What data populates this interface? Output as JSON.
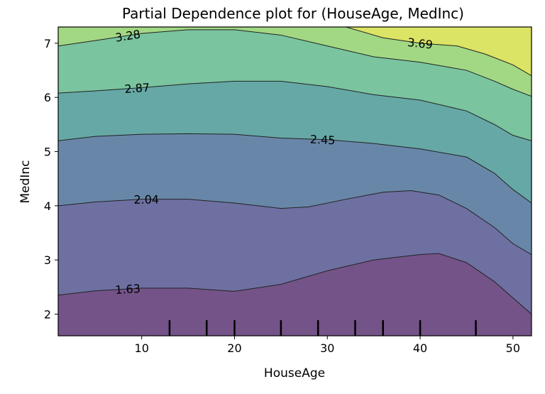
{
  "chart_data": {
    "type": "contour",
    "title": "Partial Dependence plot for (HouseAge, MedInc)",
    "xlabel": "HouseAge",
    "ylabel": "MedInc",
    "xlim": [
      1,
      52
    ],
    "ylim": [
      1.6,
      7.3
    ],
    "x_ticks": [
      10,
      20,
      30,
      40,
      50
    ],
    "y_ticks": [
      2,
      3,
      4,
      5,
      6,
      7
    ],
    "grid": false,
    "levels": [
      1.63,
      2.04,
      2.45,
      2.87,
      3.28,
      3.69
    ],
    "band_colors": [
      "#745388",
      "#6e70a2",
      "#6887a8",
      "#66a8a6",
      "#7ac49f",
      "#a2d884",
      "#dbe464"
    ],
    "contour_lines": [
      {
        "level": 1.63,
        "label": "1.63",
        "points": [
          [
            1,
            2.35
          ],
          [
            5,
            2.43
          ],
          [
            10,
            2.48
          ],
          [
            15,
            2.48
          ],
          [
            20,
            2.42
          ],
          [
            25,
            2.55
          ],
          [
            30,
            2.8
          ],
          [
            35,
            3.0
          ],
          [
            40,
            3.1
          ],
          [
            42,
            3.12
          ],
          [
            45,
            2.95
          ],
          [
            48,
            2.6
          ],
          [
            50,
            2.3
          ],
          [
            52,
            2.0
          ]
        ]
      },
      {
        "level": 2.04,
        "label": "2.04",
        "points": [
          [
            1,
            4.0
          ],
          [
            5,
            4.07
          ],
          [
            10,
            4.12
          ],
          [
            15,
            4.12
          ],
          [
            20,
            4.05
          ],
          [
            25,
            3.95
          ],
          [
            28,
            3.98
          ],
          [
            32,
            4.12
          ],
          [
            36,
            4.25
          ],
          [
            39,
            4.28
          ],
          [
            42,
            4.2
          ],
          [
            45,
            3.95
          ],
          [
            48,
            3.6
          ],
          [
            50,
            3.3
          ],
          [
            52,
            3.1
          ]
        ]
      },
      {
        "level": 2.45,
        "label": "2.45",
        "points": [
          [
            1,
            5.2
          ],
          [
            5,
            5.28
          ],
          [
            10,
            5.32
          ],
          [
            15,
            5.33
          ],
          [
            20,
            5.32
          ],
          [
            25,
            5.25
          ],
          [
            30,
            5.22
          ],
          [
            35,
            5.15
          ],
          [
            40,
            5.05
          ],
          [
            45,
            4.9
          ],
          [
            48,
            4.6
          ],
          [
            50,
            4.3
          ],
          [
            52,
            4.05
          ]
        ]
      },
      {
        "level": 2.87,
        "label": "2.87",
        "points": [
          [
            1,
            6.08
          ],
          [
            5,
            6.12
          ],
          [
            10,
            6.18
          ],
          [
            15,
            6.25
          ],
          [
            20,
            6.3
          ],
          [
            25,
            6.3
          ],
          [
            30,
            6.2
          ],
          [
            35,
            6.05
          ],
          [
            40,
            5.95
          ],
          [
            45,
            5.75
          ],
          [
            48,
            5.5
          ],
          [
            50,
            5.3
          ],
          [
            52,
            5.2
          ]
        ]
      },
      {
        "level": 3.28,
        "label": "3.28",
        "points": [
          [
            1,
            6.95
          ],
          [
            5,
            7.05
          ],
          [
            10,
            7.18
          ],
          [
            15,
            7.25
          ],
          [
            20,
            7.25
          ],
          [
            25,
            7.15
          ],
          [
            30,
            6.95
          ],
          [
            35,
            6.75
          ],
          [
            40,
            6.65
          ],
          [
            45,
            6.5
          ],
          [
            48,
            6.3
          ],
          [
            50,
            6.15
          ],
          [
            52,
            6.02
          ]
        ]
      },
      {
        "level": 3.69,
        "label": "3.69",
        "points": [
          [
            32,
            7.3
          ],
          [
            36,
            7.1
          ],
          [
            40,
            7.0
          ],
          [
            44,
            6.95
          ],
          [
            47,
            6.8
          ],
          [
            50,
            6.6
          ],
          [
            52,
            6.4
          ]
        ]
      }
    ],
    "rug_x": [
      13,
      17,
      20,
      25,
      29,
      33,
      36,
      40,
      46
    ]
  }
}
